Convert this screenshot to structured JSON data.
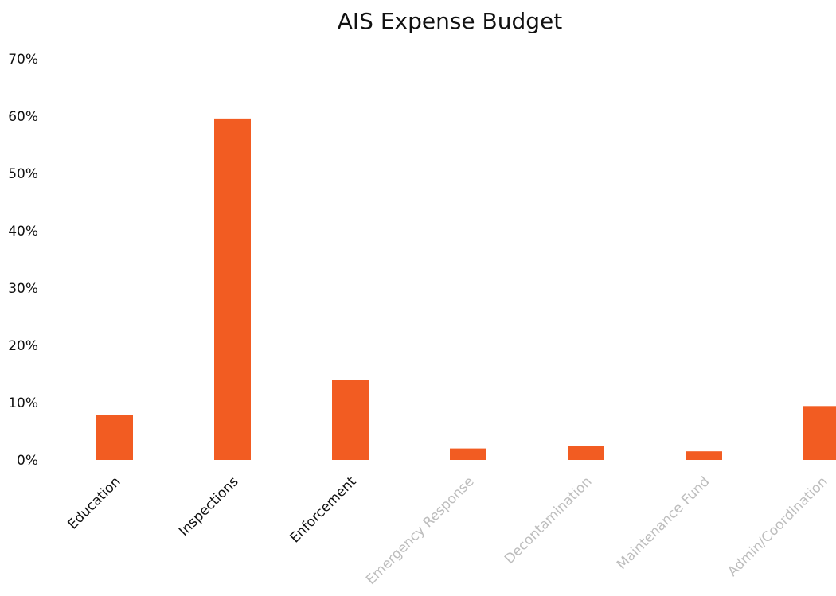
{
  "chart_data": {
    "type": "bar",
    "title": "AIS Expense Budget",
    "xlabel": "",
    "ylabel": "",
    "categories": [
      "Education",
      "Inspections",
      "Enforcement",
      "Emergency Response",
      "Decontamination",
      "Maintenance Fund",
      "Admin/Coordination"
    ],
    "values": [
      7.8,
      59.6,
      14.0,
      2.0,
      2.5,
      1.5,
      9.4
    ],
    "ylim": [
      0,
      70
    ],
    "yticks": [
      "0%",
      "10%",
      "20%",
      "30%",
      "40%",
      "50%",
      "60%",
      "70%"
    ],
    "grid": false,
    "legend": "none",
    "bar_color": "#F25C22",
    "label_colors": [
      "#111111",
      "#111111",
      "#111111",
      "#bdbdbd",
      "#bdbdbd",
      "#bdbdbd",
      "#bdbdbd"
    ]
  }
}
